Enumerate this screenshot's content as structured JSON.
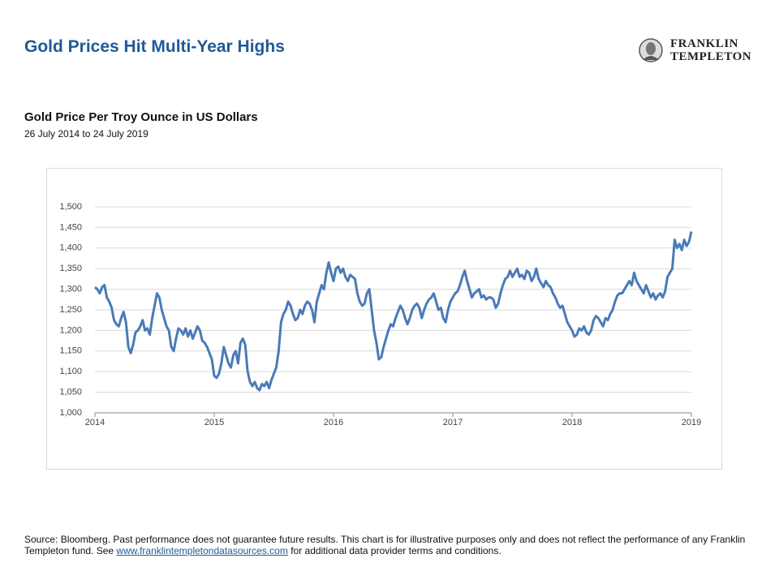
{
  "header": {
    "title": "Gold Prices Hit Multi-Year Highs",
    "logo": [
      "FRANKLIN",
      "TEMPLETON"
    ]
  },
  "chart_data": {
    "type": "line",
    "title": "Gold Price Per Troy Ounce in US Dollars",
    "subtitle": "26 July 2014 to 24 July 2019",
    "color": "#4a7ab8",
    "grid": true,
    "xlim": [
      2014,
      2019
    ],
    "xticks": [
      2014,
      2015,
      2016,
      2017,
      2018,
      2019
    ],
    "ylim": [
      1000,
      1500
    ],
    "yticks": [
      {
        "value": 1000,
        "label": "1,000"
      },
      {
        "value": 1050,
        "label": "1,050"
      },
      {
        "value": 1100,
        "label": "1,100"
      },
      {
        "value": 1150,
        "label": "1,150"
      },
      {
        "value": 1200,
        "label": "1,200"
      },
      {
        "value": 1250,
        "label": "1,250"
      },
      {
        "value": 1300,
        "label": "1,300"
      },
      {
        "value": 1350,
        "label": "1,350"
      },
      {
        "value": 1400,
        "label": "1,400"
      },
      {
        "value": 1450,
        "label": "1,450"
      },
      {
        "value": 1500,
        "label": "1,500"
      }
    ],
    "x": [
      2014,
      2014.02,
      2014.04,
      2014.06,
      2014.08,
      2014.1,
      2014.12,
      2014.14,
      2014.16,
      2014.18,
      2014.2,
      2014.22,
      2014.24,
      2014.26,
      2014.28,
      2014.3,
      2014.32,
      2014.34,
      2014.36,
      2014.38,
      2014.4,
      2014.42,
      2014.44,
      2014.46,
      2014.48,
      2014.5,
      2014.52,
      2014.54,
      2014.56,
      2014.58,
      2014.6,
      2014.62,
      2014.64,
      2014.66,
      2014.68,
      2014.7,
      2014.72,
      2014.74,
      2014.76,
      2014.78,
      2014.8,
      2014.82,
      2014.84,
      2014.86,
      2014.88,
      2014.9,
      2014.92,
      2014.94,
      2014.96,
      2014.98,
      2015,
      2015.02,
      2015.04,
      2015.06,
      2015.08,
      2015.1,
      2015.12,
      2015.14,
      2015.16,
      2015.18,
      2015.2,
      2015.22,
      2015.24,
      2015.26,
      2015.28,
      2015.3,
      2015.32,
      2015.34,
      2015.36,
      2015.38,
      2015.4,
      2015.42,
      2015.44,
      2015.46,
      2015.48,
      2015.5,
      2015.52,
      2015.54,
      2015.56,
      2015.58,
      2015.6,
      2015.62,
      2015.64,
      2015.66,
      2015.68,
      2015.7,
      2015.72,
      2015.74,
      2015.76,
      2015.78,
      2015.8,
      2015.82,
      2015.84,
      2015.86,
      2015.88,
      2015.9,
      2015.92,
      2015.94,
      2015.96,
      2015.98,
      2016,
      2016.02,
      2016.04,
      2016.06,
      2016.08,
      2016.1,
      2016.12,
      2016.14,
      2016.16,
      2016.18,
      2016.2,
      2016.22,
      2016.24,
      2016.26,
      2016.28,
      2016.3,
      2016.32,
      2016.34,
      2016.36,
      2016.38,
      2016.4,
      2016.42,
      2016.44,
      2016.46,
      2016.48,
      2016.5,
      2016.52,
      2016.54,
      2016.56,
      2016.58,
      2016.6,
      2016.62,
      2016.64,
      2016.66,
      2016.68,
      2016.7,
      2016.72,
      2016.74,
      2016.76,
      2016.78,
      2016.8,
      2016.82,
      2016.84,
      2016.86,
      2016.88,
      2016.9,
      2016.92,
      2016.94,
      2016.96,
      2016.98,
      2017,
      2017.02,
      2017.04,
      2017.06,
      2017.08,
      2017.1,
      2017.12,
      2017.14,
      2017.16,
      2017.18,
      2017.2,
      2017.22,
      2017.24,
      2017.26,
      2017.28,
      2017.3,
      2017.32,
      2017.34,
      2017.36,
      2017.38,
      2017.4,
      2017.42,
      2017.44,
      2017.46,
      2017.48,
      2017.5,
      2017.52,
      2017.54,
      2017.56,
      2017.58,
      2017.6,
      2017.62,
      2017.64,
      2017.66,
      2017.68,
      2017.7,
      2017.72,
      2017.74,
      2017.76,
      2017.78,
      2017.8,
      2017.82,
      2017.84,
      2017.86,
      2017.88,
      2017.9,
      2017.92,
      2017.94,
      2017.96,
      2017.98,
      2018,
      2018.02,
      2018.04,
      2018.06,
      2018.08,
      2018.1,
      2018.12,
      2018.14,
      2018.16,
      2018.18,
      2018.2,
      2018.22,
      2018.24,
      2018.26,
      2018.28,
      2018.3,
      2018.32,
      2018.34,
      2018.36,
      2018.38,
      2018.4,
      2018.42,
      2018.44,
      2018.46,
      2018.48,
      2018.5,
      2018.52,
      2018.54,
      2018.56,
      2018.58,
      2018.6,
      2018.62,
      2018.64,
      2018.66,
      2018.68,
      2018.7,
      2018.72,
      2018.74,
      2018.76,
      2018.78,
      2018.8,
      2018.82,
      2018.84,
      2018.86,
      2018.88,
      2018.9,
      2018.92,
      2018.94,
      2018.96,
      2018.98,
      2019
    ],
    "values": [
      1305,
      1300,
      1290,
      1305,
      1310,
      1280,
      1270,
      1255,
      1225,
      1215,
      1210,
      1230,
      1245,
      1220,
      1160,
      1145,
      1165,
      1195,
      1200,
      1210,
      1225,
      1200,
      1205,
      1190,
      1230,
      1260,
      1290,
      1280,
      1250,
      1230,
      1210,
      1200,
      1160,
      1150,
      1180,
      1205,
      1200,
      1190,
      1205,
      1185,
      1200,
      1180,
      1195,
      1210,
      1200,
      1175,
      1170,
      1160,
      1145,
      1130,
      1090,
      1085,
      1095,
      1120,
      1160,
      1140,
      1120,
      1110,
      1140,
      1150,
      1120,
      1170,
      1180,
      1165,
      1100,
      1075,
      1065,
      1075,
      1060,
      1055,
      1070,
      1065,
      1075,
      1060,
      1080,
      1095,
      1110,
      1150,
      1220,
      1240,
      1250,
      1270,
      1260,
      1240,
      1225,
      1230,
      1250,
      1240,
      1260,
      1270,
      1265,
      1250,
      1220,
      1270,
      1290,
      1310,
      1300,
      1340,
      1365,
      1340,
      1320,
      1350,
      1355,
      1340,
      1350,
      1330,
      1320,
      1335,
      1330,
      1325,
      1290,
      1270,
      1260,
      1265,
      1290,
      1300,
      1250,
      1200,
      1170,
      1130,
      1135,
      1160,
      1180,
      1200,
      1215,
      1210,
      1230,
      1245,
      1260,
      1250,
      1230,
      1215,
      1230,
      1250,
      1260,
      1265,
      1255,
      1230,
      1250,
      1265,
      1275,
      1280,
      1290,
      1270,
      1250,
      1255,
      1230,
      1220,
      1250,
      1270,
      1280,
      1290,
      1295,
      1310,
      1330,
      1345,
      1320,
      1300,
      1280,
      1290,
      1295,
      1300,
      1280,
      1285,
      1275,
      1280,
      1280,
      1275,
      1255,
      1265,
      1290,
      1310,
      1325,
      1330,
      1345,
      1330,
      1340,
      1350,
      1330,
      1335,
      1325,
      1345,
      1340,
      1320,
      1330,
      1350,
      1325,
      1315,
      1305,
      1320,
      1310,
      1305,
      1290,
      1280,
      1265,
      1255,
      1260,
      1240,
      1220,
      1210,
      1200,
      1185,
      1190,
      1205,
      1200,
      1210,
      1195,
      1190,
      1200,
      1225,
      1235,
      1230,
      1220,
      1210,
      1230,
      1225,
      1240,
      1250,
      1270,
      1285,
      1290,
      1290,
      1300,
      1310,
      1320,
      1310,
      1340,
      1320,
      1310,
      1300,
      1290,
      1310,
      1295,
      1280,
      1290,
      1275,
      1285,
      1290,
      1280,
      1295,
      1330,
      1340,
      1350,
      1420,
      1400,
      1410,
      1395,
      1420,
      1405,
      1415,
      1440
    ]
  },
  "footer": {
    "source": "Source: Bloomberg. Past performance does not guarantee future results. This chart is for illustrative purposes only and does not reflect the performance of any Franklin Templeton fund. See ",
    "link": "www.franklintempletondatasources.com",
    "source_end": " for additional data provider terms and conditions."
  }
}
